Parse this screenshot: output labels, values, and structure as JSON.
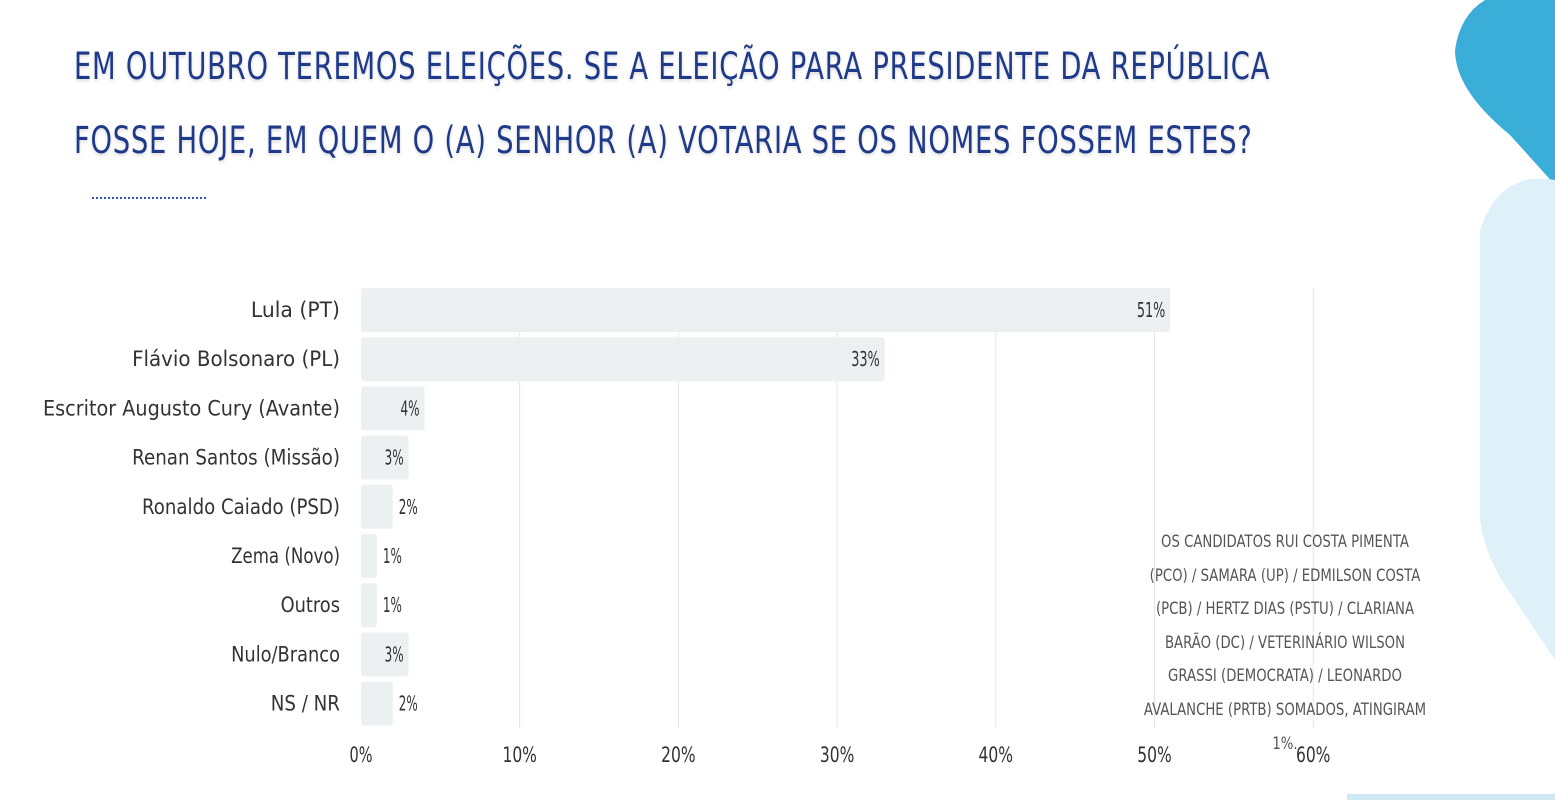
{
  "header": {
    "title_line1": "EM OUTUBRO TEREMOS ELEIÇÕES. SE A ELEIÇÃO PARA PRESIDENTE DA REPÚBLICA",
    "title_line2": "FOSSE HOJE, EM QUEM O (A) SENHOR (A) VOTARIA SE OS NOMES FOSSEM ESTES?"
  },
  "footnote": "OS CANDIDATOS  RUI COSTA PIMENTA (PCO) / SAMARA  (UP) / EDMILSON COSTA (PCB) / HERTZ DIAS (PSTU)  / CLARIANA BARÃO (DC) / VETERINÁRIO WILSON GRASSI (DEMOCRATA) / LEONARDO AVALANCHE (PRTB) SOMADOS, ATINGIRAM 1%.",
  "colors": {
    "title": "#1f3a8a",
    "bar": "#ecf0f0",
    "grid": "#e3e6e8",
    "label": "#333333",
    "deco_dark": "#3aaed8",
    "deco_light": "#dff1f8"
  },
  "chart_data": {
    "type": "bar",
    "orientation": "horizontal",
    "categories": [
      "Lula (PT)",
      "Flávio Bolsonaro (PL)",
      "Escritor Augusto Cury (Avante)",
      "Renan Santos (Missão)",
      "Ronaldo Caiado (PSD)",
      "Zema (Novo)",
      "Outros",
      "Nulo/Branco",
      "NS / NR"
    ],
    "values": [
      51,
      33,
      4,
      3,
      2,
      1,
      1,
      3,
      2
    ],
    "value_labels": [
      "51%",
      "33%",
      "4%",
      "3%",
      "2%",
      "1%",
      "1%",
      "3%",
      "2%"
    ],
    "xlim": [
      0,
      60
    ],
    "xticks": [
      0,
      10,
      20,
      30,
      40,
      50,
      60
    ],
    "xtick_labels": [
      "0%",
      "10%",
      "20%",
      "30%",
      "40%",
      "50%",
      "60%"
    ],
    "grid": true,
    "legend": false
  }
}
